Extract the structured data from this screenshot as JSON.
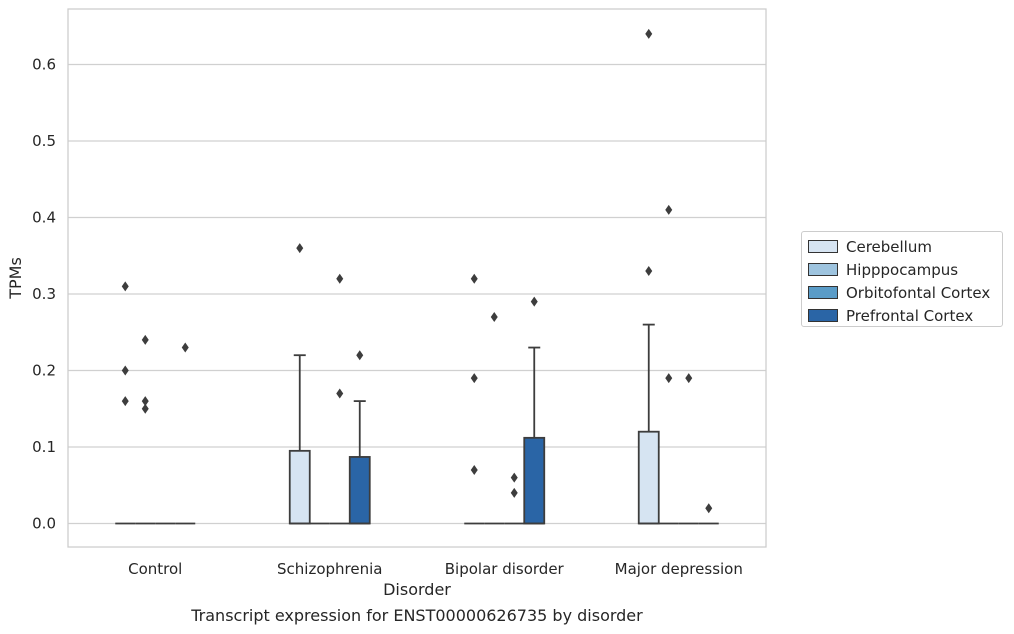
{
  "caption": "Transcript expression for ENST00000626735 by disorder",
  "chart_data": {
    "type": "box",
    "xlabel": "Disorder",
    "ylabel": "TPMs",
    "ylim": [
      -0.032,
      0.675
    ],
    "yticks": [
      "0.0",
      "0.1",
      "0.2",
      "0.3",
      "0.4",
      "0.5",
      "0.6"
    ],
    "ytick_values": [
      0.0,
      0.1,
      0.2,
      0.3,
      0.4,
      0.5,
      0.6
    ],
    "grid": "horizontal",
    "legend_position": "right",
    "categories": [
      "Control",
      "Schizophrenia",
      "Bipolar disorder",
      "Major depression"
    ],
    "series": [
      {
        "name": "Cerebellum",
        "color": "#d6e4f2",
        "boxes": [
          {
            "q1": 0,
            "median": 0,
            "q3": 0,
            "whisker_low": 0,
            "whisker_high": 0,
            "outliers": [
              0.31,
              0.2,
              0.16
            ]
          },
          {
            "q1": 0,
            "median": 0,
            "q3": 0.095,
            "whisker_low": 0,
            "whisker_high": 0.22,
            "outliers": [
              0.36
            ]
          },
          {
            "q1": 0,
            "median": 0,
            "q3": 0,
            "whisker_low": 0,
            "whisker_high": 0,
            "outliers": [
              0.32,
              0.19,
              0.07
            ]
          },
          {
            "q1": 0,
            "median": 0,
            "q3": 0.12,
            "whisker_low": 0,
            "whisker_high": 0.26,
            "outliers": [
              0.64,
              0.33
            ]
          }
        ]
      },
      {
        "name": "Hipppocampus",
        "color": "#9ec4df",
        "boxes": [
          {
            "q1": 0,
            "median": 0,
            "q3": 0,
            "whisker_low": 0,
            "whisker_high": 0,
            "outliers": [
              0.24,
              0.16,
              0.15
            ]
          },
          {
            "q1": 0,
            "median": 0,
            "q3": 0,
            "whisker_low": 0,
            "whisker_high": 0,
            "outliers": []
          },
          {
            "q1": 0,
            "median": 0,
            "q3": 0,
            "whisker_low": 0,
            "whisker_high": 0,
            "outliers": [
              0.27
            ]
          },
          {
            "q1": 0,
            "median": 0,
            "q3": 0,
            "whisker_low": 0,
            "whisker_high": 0,
            "outliers": [
              0.41,
              0.19
            ]
          }
        ]
      },
      {
        "name": "Orbitofontal Cortex",
        "color": "#5a9cc8",
        "boxes": [
          {
            "q1": 0,
            "median": 0,
            "q3": 0,
            "whisker_low": 0,
            "whisker_high": 0,
            "outliers": []
          },
          {
            "q1": 0,
            "median": 0,
            "q3": 0,
            "whisker_low": 0,
            "whisker_high": 0,
            "outliers": [
              0.32,
              0.17
            ]
          },
          {
            "q1": 0,
            "median": 0,
            "q3": 0,
            "whisker_low": 0,
            "whisker_high": 0,
            "outliers": [
              0.06,
              0.04
            ]
          },
          {
            "q1": 0,
            "median": 0,
            "q3": 0,
            "whisker_low": 0,
            "whisker_high": 0,
            "outliers": [
              0.19
            ]
          }
        ]
      },
      {
        "name": "Prefrontal Cortex",
        "color": "#2a65a6",
        "boxes": [
          {
            "q1": 0,
            "median": 0,
            "q3": 0,
            "whisker_low": 0,
            "whisker_high": 0,
            "outliers": [
              0.23
            ]
          },
          {
            "q1": 0,
            "median": 0,
            "q3": 0.087,
            "whisker_low": 0,
            "whisker_high": 0.16,
            "outliers": [
              0.22
            ]
          },
          {
            "q1": 0,
            "median": 0,
            "q3": 0.112,
            "whisker_low": 0,
            "whisker_high": 0.23,
            "outliers": [
              0.29
            ]
          },
          {
            "q1": 0,
            "median": 0,
            "q3": 0,
            "whisker_low": 0,
            "whisker_high": 0,
            "outliers": [
              0.02
            ]
          }
        ]
      }
    ]
  }
}
